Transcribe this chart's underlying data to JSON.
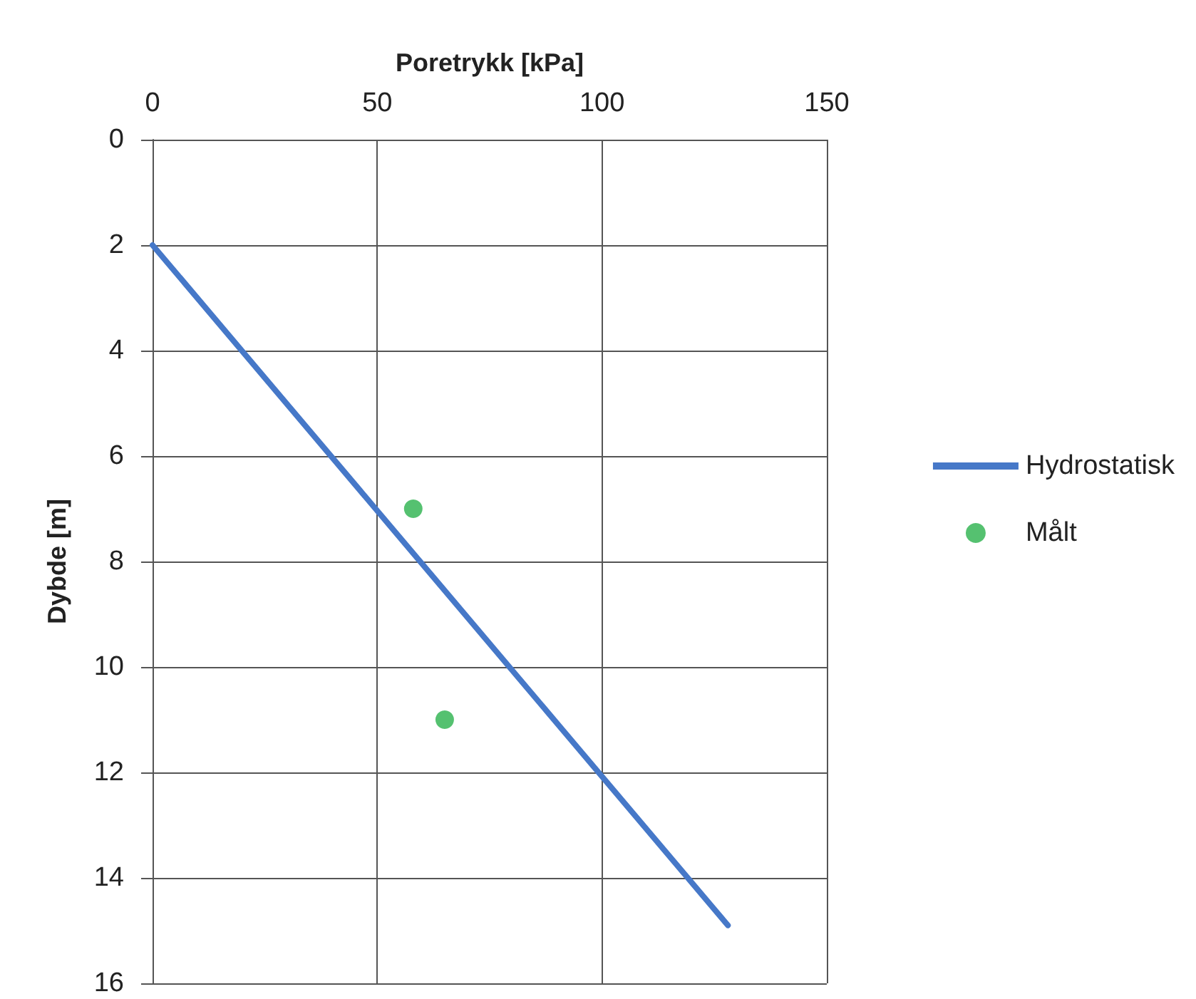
{
  "chart_data": {
    "type": "line",
    "xlabel": "Poretrykk [kPa]",
    "ylabel": "Dybde [m]",
    "xlim": [
      0,
      150
    ],
    "xticks": [
      0,
      50,
      100,
      150
    ],
    "ylim": [
      16,
      0
    ],
    "yticks": [
      0,
      2,
      4,
      6,
      8,
      10,
      12,
      14,
      16
    ],
    "grid": true,
    "legend": "right",
    "series": [
      {
        "name": "Hydrostatisk",
        "color": "#4678c8",
        "x": [
          0,
          128
        ],
        "values": [
          2,
          14.9
        ]
      },
      {
        "name": "Målt",
        "type": "scatter",
        "marker": "circle",
        "color": "#2bb24c",
        "x": [
          58,
          65
        ],
        "values": [
          7,
          11
        ]
      }
    ]
  }
}
